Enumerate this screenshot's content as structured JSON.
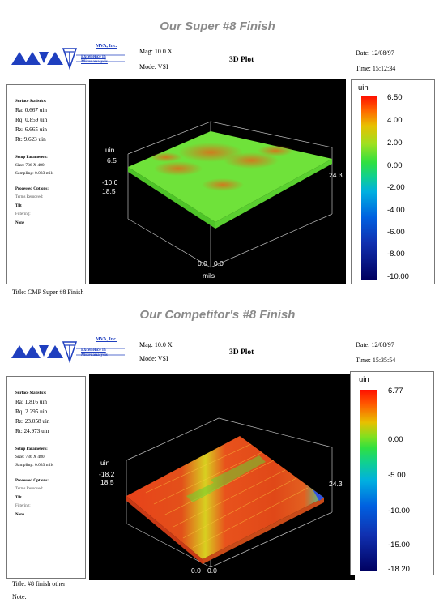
{
  "panels": [
    {
      "heading": "Our Super #8 Finish",
      "company": "MVA, Inc.",
      "tagline": "Excellence in Microanalysis",
      "mag": "Mag: 10.0 X",
      "mode": "Mode: VSI",
      "plot_title": "3D Plot",
      "date": "Date: 12/08/97",
      "time": "Time: 15:12:34",
      "surface_stats_label": "Surface Statistics:",
      "stats": [
        "Ra: 0.667 uin",
        "Rq: 0.859 uin",
        "Rz: 6.665 uin",
        "Rt: 9.623 uin"
      ],
      "setup_label": "Setup Parameters:",
      "size": "Size: 736 X 480",
      "sampling": "Sampling: 0.033 mils",
      "processed_label": "Processed Options:",
      "terms_label": "Terms Removed:",
      "terms_value": "Tilt",
      "filtering_label": "Filtering:",
      "filtering_value": "None",
      "z_unit": "uin",
      "z_value": "6.5",
      "z_min": "-10.0",
      "y_value": "18.5",
      "x_value": "24.3",
      "origin_a": "0.0",
      "origin_b": "0.0",
      "axis_unit": "mils",
      "scale_unit": "uin",
      "scale_ticks": [
        "6.50",
        "4.00",
        "2.00",
        "0.00",
        "-2.00",
        "-4.00",
        "-6.00",
        "-8.00",
        "-10.00"
      ],
      "title_line": "Title:  CMP Super #8 Finish",
      "note_line": ""
    },
    {
      "heading": "Our Competitor's #8 Finish",
      "company": "MVA, Inc.",
      "tagline": "Excellence in Microanalysis",
      "mag": "Mag: 10.0 X",
      "mode": "Mode: VSI",
      "plot_title": "3D Plot",
      "date": "Date: 12/08/97",
      "time": "Time: 15:35:54",
      "surface_stats_label": "Surface Statistics:",
      "stats": [
        "Ra: 1.816 uin",
        "Rq: 2.295 uin",
        "Rz: 23.058 uin",
        "Rt: 24.973 uin"
      ],
      "setup_label": "Setup Parameters:",
      "size": "Size: 736 X 480",
      "sampling": "Sampling: 0.033 mils",
      "processed_label": "Processed Options:",
      "terms_label": "Terms Removed:",
      "terms_value": "Tilt",
      "filtering_label": "Filtering:",
      "filtering_value": "None",
      "z_unit": "uin",
      "z_value": "-18.2",
      "z_min": "",
      "y_value": "18.5",
      "x_value": "24.3",
      "origin_a": "0.0",
      "origin_b": "0.0",
      "axis_unit": "",
      "scale_unit": "uin",
      "scale_ticks": [
        "6.77",
        "0.00",
        "-5.00",
        "-10.00",
        "-15.00",
        "-18.20"
      ],
      "title_line": "Title:  #8 finish other",
      "note_line": "Note:"
    }
  ]
}
